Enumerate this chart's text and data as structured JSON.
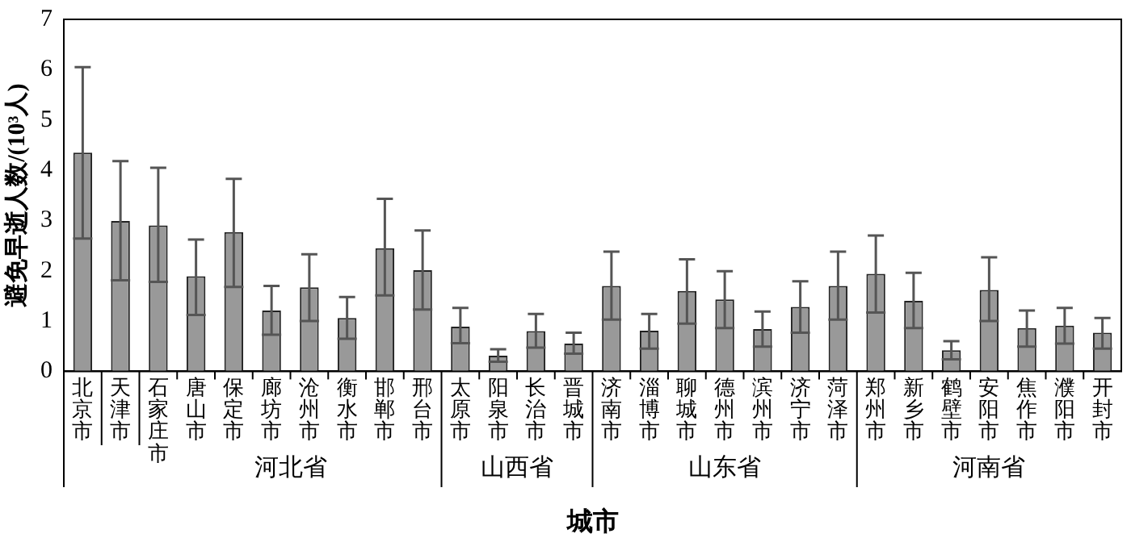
{
  "chart_data": {
    "type": "bar",
    "xlabel": "城市",
    "ylabel": "避免早逝人数/(10³人)",
    "categories": [
      "北京市",
      "天津市",
      "石家庄市",
      "唐山市",
      "保定市",
      "廊坊市",
      "沧州市",
      "衡水市",
      "邯郸市",
      "邢台市",
      "太原市",
      "阳泉市",
      "长治市",
      "晋城市",
      "济南市",
      "淄博市",
      "聊城市",
      "德州市",
      "滨州市",
      "济宁市",
      "菏泽市",
      "郑州市",
      "新乡市",
      "鹤壁市",
      "安阳市",
      "焦作市",
      "濮阳市",
      "开封市"
    ],
    "values": [
      4.35,
      2.99,
      2.9,
      1.89,
      2.77,
      1.21,
      1.67,
      1.06,
      2.45,
      2.01,
      0.89,
      0.31,
      0.8,
      0.55,
      1.7,
      0.81,
      1.6,
      1.43,
      0.84,
      1.28,
      1.7,
      1.94,
      1.4,
      0.42,
      1.62,
      0.86,
      0.91,
      0.77
    ],
    "errors": [
      [
        2.64,
        6.05
      ],
      [
        1.81,
        4.18
      ],
      [
        1.78,
        4.05
      ],
      [
        1.12,
        2.62
      ],
      [
        1.68,
        3.83
      ],
      [
        0.73,
        1.7
      ],
      [
        1.0,
        2.33
      ],
      [
        0.65,
        1.48
      ],
      [
        1.51,
        3.43
      ],
      [
        1.23,
        2.8
      ],
      [
        0.56,
        1.26
      ],
      [
        0.19,
        0.44
      ],
      [
        0.47,
        1.14
      ],
      [
        0.35,
        0.77
      ],
      [
        1.03,
        2.38
      ],
      [
        0.45,
        1.14
      ],
      [
        0.95,
        2.23
      ],
      [
        0.86,
        1.99
      ],
      [
        0.49,
        1.19
      ],
      [
        0.77,
        1.79
      ],
      [
        1.03,
        2.38
      ],
      [
        1.17,
        2.7
      ],
      [
        0.86,
        1.96
      ],
      [
        0.24,
        0.6
      ],
      [
        1.0,
        2.27
      ],
      [
        0.49,
        1.21
      ],
      [
        0.55,
        1.26
      ],
      [
        0.45,
        1.06
      ]
    ],
    "color": "#999999",
    "ylim": [
      0,
      7
    ],
    "yticks": [
      0,
      1,
      2,
      3,
      4,
      5,
      6,
      7
    ],
    "grid": false,
    "legend": false,
    "annotations": [
      "河北省",
      "山西省",
      "山东省",
      "河南省"
    ]
  }
}
